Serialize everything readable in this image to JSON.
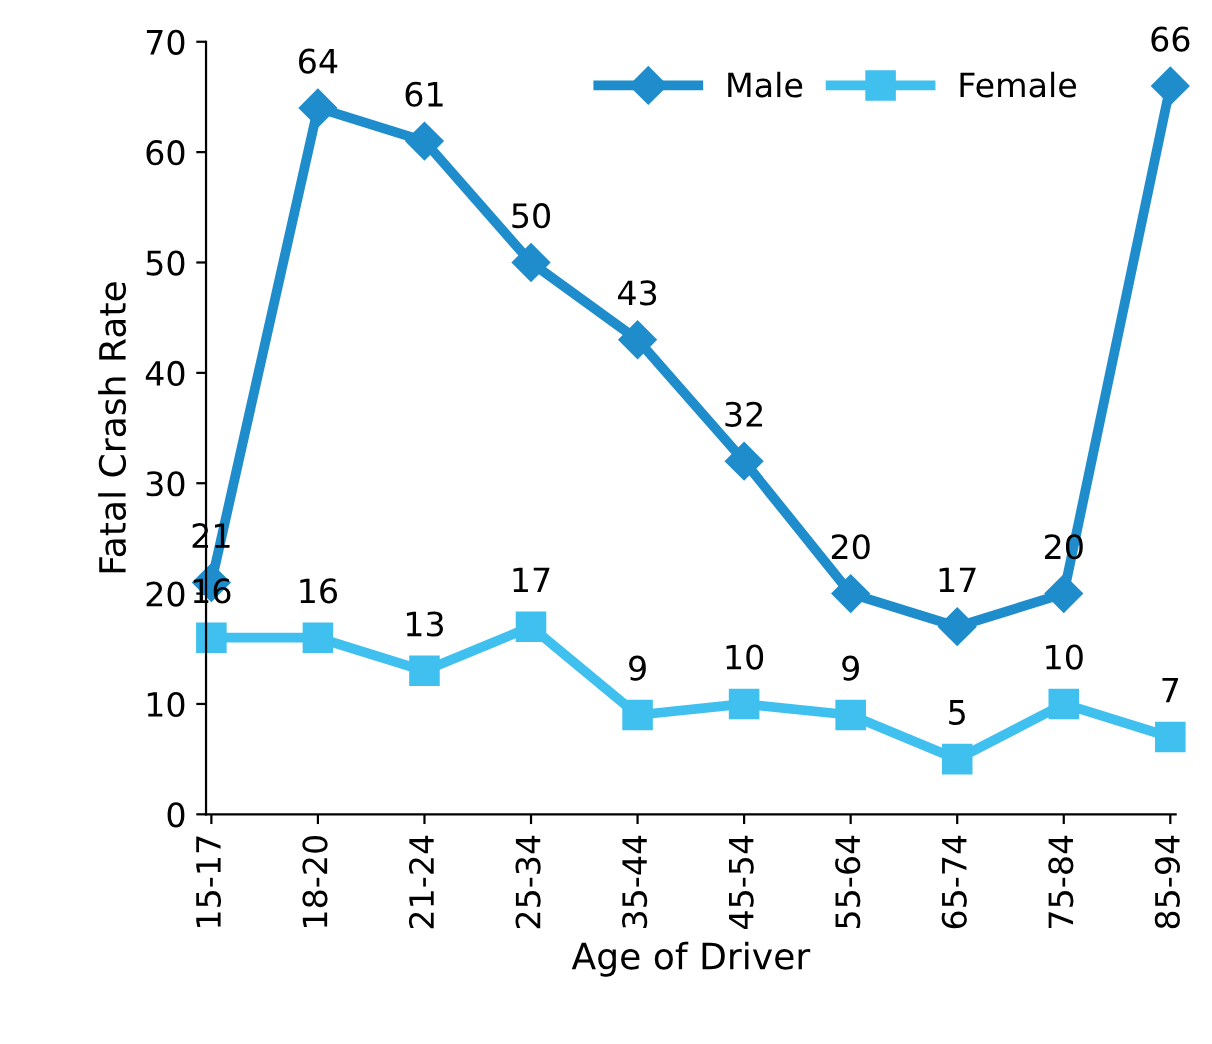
{
  "chart_data": {
    "type": "line",
    "xlabel": "Age of Driver",
    "ylabel": "Fatal Crash Rate",
    "categories": [
      "15-17",
      "18-20",
      "21-24",
      "25-34",
      "35-44",
      "45-54",
      "55-64",
      "65-74",
      "75-84",
      "85-94"
    ],
    "series": [
      {
        "name": "Male",
        "color": "#1f8dcc",
        "marker": "diamond",
        "values": [
          21,
          64,
          61,
          50,
          43,
          32,
          20,
          17,
          20,
          66
        ]
      },
      {
        "name": "Female",
        "color": "#3fc0ee",
        "marker": "square",
        "values": [
          16,
          16,
          13,
          17,
          9,
          10,
          9,
          5,
          10,
          7
        ]
      }
    ],
    "ylim": [
      0,
      70
    ],
    "yticks": [
      0,
      10,
      20,
      30,
      40,
      50,
      60,
      70
    ],
    "grid": false,
    "legend": "top right",
    "data_labels": true,
    "line_style": "solid"
  }
}
